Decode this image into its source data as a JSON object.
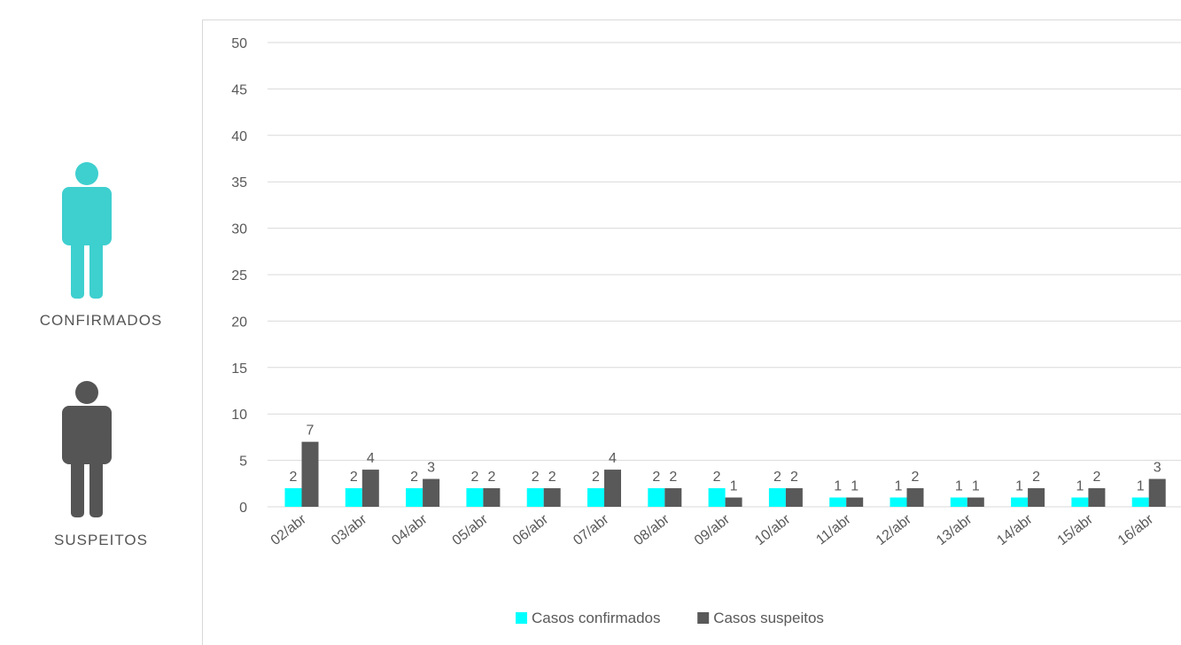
{
  "infographic": {
    "confirmed_label": "CONFIRMADOS",
    "suspect_label": "SUSPEITOS",
    "confirmed_icon": "person-icon",
    "suspect_icon": "person-icon"
  },
  "colors": {
    "confirmed": "#00ffff",
    "suspect": "#595959",
    "icon_confirmed": "#3ecfcf",
    "icon_suspect": "#555555",
    "grid": "#d9d9d9",
    "text": "#595959"
  },
  "chart_data": {
    "type": "bar",
    "title": "",
    "xlabel": "",
    "ylabel": "",
    "ylim": [
      0,
      50
    ],
    "yticks": [
      0,
      5,
      10,
      15,
      20,
      25,
      30,
      35,
      40,
      45,
      50
    ],
    "grid": true,
    "legend_position": "bottom",
    "categories": [
      "02/abr",
      "03/abr",
      "04/abr",
      "05/abr",
      "06/abr",
      "07/abr",
      "08/abr",
      "09/abr",
      "10/abr",
      "11/abr",
      "12/abr",
      "13/abr",
      "14/abr",
      "15/abr",
      "16/abr"
    ],
    "series": [
      {
        "name": "Casos confirmados",
        "values": [
          2,
          2,
          2,
          2,
          2,
          2,
          2,
          2,
          2,
          1,
          1,
          1,
          1,
          1,
          1
        ]
      },
      {
        "name": "Casos suspeitos",
        "values": [
          7,
          4,
          3,
          2,
          2,
          4,
          2,
          1,
          2,
          1,
          2,
          1,
          2,
          2,
          3
        ]
      }
    ]
  }
}
